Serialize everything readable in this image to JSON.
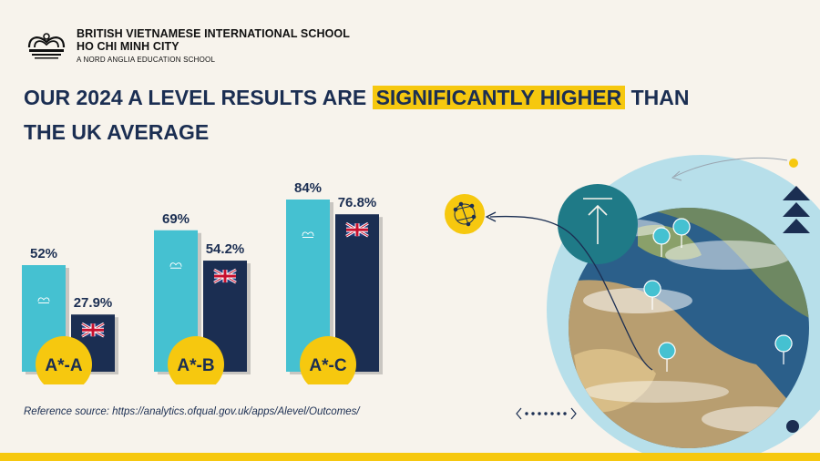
{
  "school": {
    "name_line1": "BRITISH VIETNAMESE INTERNATIONAL SCHOOL",
    "name_line2": "HO CHI MINH CITY",
    "tagline": "A NORD ANGLIA EDUCATION SCHOOL"
  },
  "headline": {
    "part1": "OUR 2024 A LEVEL RESULTS ARE ",
    "highlight": "SIGNIFICANTLY HIGHER",
    "part2": " THAN THE UK AVERAGE"
  },
  "source": "Reference source: https://analytics.ofqual.gov.uk/apps/Alevel/Outcomes/",
  "colors": {
    "school_bar": "#45c1d1",
    "uk_bar": "#1b2e52",
    "badge": "#f6c80f",
    "highlight": "#f6c80f",
    "text": "#1b2e52"
  },
  "icons": [
    "school-crest-icon",
    "uk-flag-icon",
    "up-arrow-icon",
    "network-icon",
    "location-pin-icon",
    "triangle-icon",
    "chevron-left-icon",
    "chevron-right-icon"
  ],
  "chart_data": {
    "type": "bar",
    "categories": [
      "A*-A",
      "A*-B",
      "A*-C"
    ],
    "series": [
      {
        "values": [
          52,
          69,
          84
        ],
        "labels": [
          "52%",
          "69%",
          "84%"
        ]
      },
      {
        "values": [
          27.9,
          54.2,
          76.8
        ],
        "labels": [
          "27.9%",
          "54.2%",
          "76.8%"
        ]
      }
    ],
    "ylim": [
      0,
      100
    ],
    "grid": false,
    "legend": "none"
  }
}
